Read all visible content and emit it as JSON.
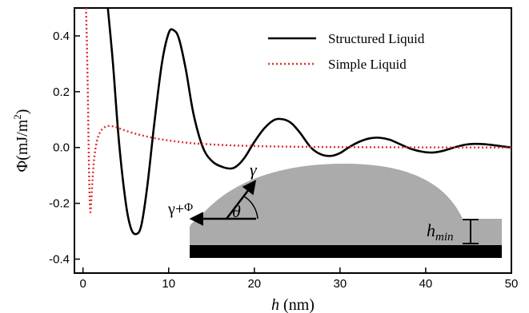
{
  "chart_data": {
    "type": "line",
    "title": "",
    "xlabel": {
      "italic": "h",
      "rest": " (nm)"
    },
    "ylabel": {
      "phi": "Φ",
      "units": "(mJ/m",
      "sup": "2",
      "close": ")"
    },
    "xlim": [
      -1,
      50
    ],
    "ylim": [
      -0.45,
      0.5
    ],
    "x_ticks": [
      0,
      10,
      20,
      30,
      40,
      50
    ],
    "x_tick_labels": [
      "0",
      "10",
      "20",
      "30",
      "40",
      "50"
    ],
    "y_ticks": [
      -0.4,
      -0.2,
      0.0,
      0.2,
      0.4
    ],
    "y_tick_labels": [
      "-0.4",
      "-0.2",
      "0.0",
      "0.2",
      "0.4"
    ],
    "legend_position": "top-right",
    "series": [
      {
        "name": "Structured Liquid",
        "color": "#000000",
        "style": "solid",
        "x": [
          2.9,
          3.5,
          4.2,
          5.0,
          5.6,
          6.2,
          6.8,
          7.5,
          8.3,
          9.2,
          10.0,
          10.6,
          11.2,
          12.0,
          12.9,
          14.0,
          15.1,
          16.3,
          17.4,
          18.2,
          19.0,
          20.0,
          21.2,
          22.4,
          23.5,
          24.4,
          25.4,
          26.6,
          27.8,
          29.0,
          30.0,
          31.0,
          32.2,
          33.5,
          34.6,
          35.8,
          37.0,
          38.3,
          39.6,
          40.8,
          42.0,
          43.3,
          44.6,
          45.8,
          46.8,
          48.0,
          49.2,
          50.0
        ],
        "y": [
          0.5,
          0.3,
          0.02,
          -0.2,
          -0.29,
          -0.31,
          -0.28,
          -0.14,
          0.08,
          0.3,
          0.41,
          0.42,
          0.39,
          0.28,
          0.12,
          0.0,
          -0.05,
          -0.07,
          -0.075,
          -0.06,
          -0.03,
          0.02,
          0.07,
          0.1,
          0.1,
          0.085,
          0.05,
          0.0,
          -0.025,
          -0.03,
          -0.02,
          0.0,
          0.02,
          0.033,
          0.035,
          0.028,
          0.012,
          -0.005,
          -0.015,
          -0.018,
          -0.012,
          0.0,
          0.01,
          0.013,
          0.012,
          0.008,
          0.003,
          0.0
        ]
      },
      {
        "name": "Simple Liquid",
        "color": "#e03030",
        "style": "dotted",
        "x": [
          0.35,
          0.45,
          0.55,
          0.65,
          0.75,
          0.85,
          0.95,
          1.1,
          1.3,
          1.6,
          2.0,
          2.5,
          3.0,
          3.6,
          4.3,
          5.2,
          6.3,
          7.5,
          9.0,
          10.5,
          12.5,
          15.0,
          18.0,
          22.0,
          27.0,
          33.0,
          40.0,
          46.0,
          50.0
        ],
        "y": [
          0.5,
          0.38,
          0.22,
          0.02,
          -0.15,
          -0.23,
          -0.2,
          -0.12,
          -0.04,
          0.02,
          0.055,
          0.072,
          0.077,
          0.075,
          0.068,
          0.058,
          0.048,
          0.039,
          0.03,
          0.023,
          0.016,
          0.011,
          0.007,
          0.004,
          0.002,
          0.001,
          0.0005,
          0.0,
          0.0
        ]
      }
    ]
  },
  "inset": {
    "gamma": "γ",
    "gamma_plus": "γ+",
    "phi": "Φ",
    "theta": "θ",
    "hmin_main": "h",
    "hmin_sub": "min"
  }
}
